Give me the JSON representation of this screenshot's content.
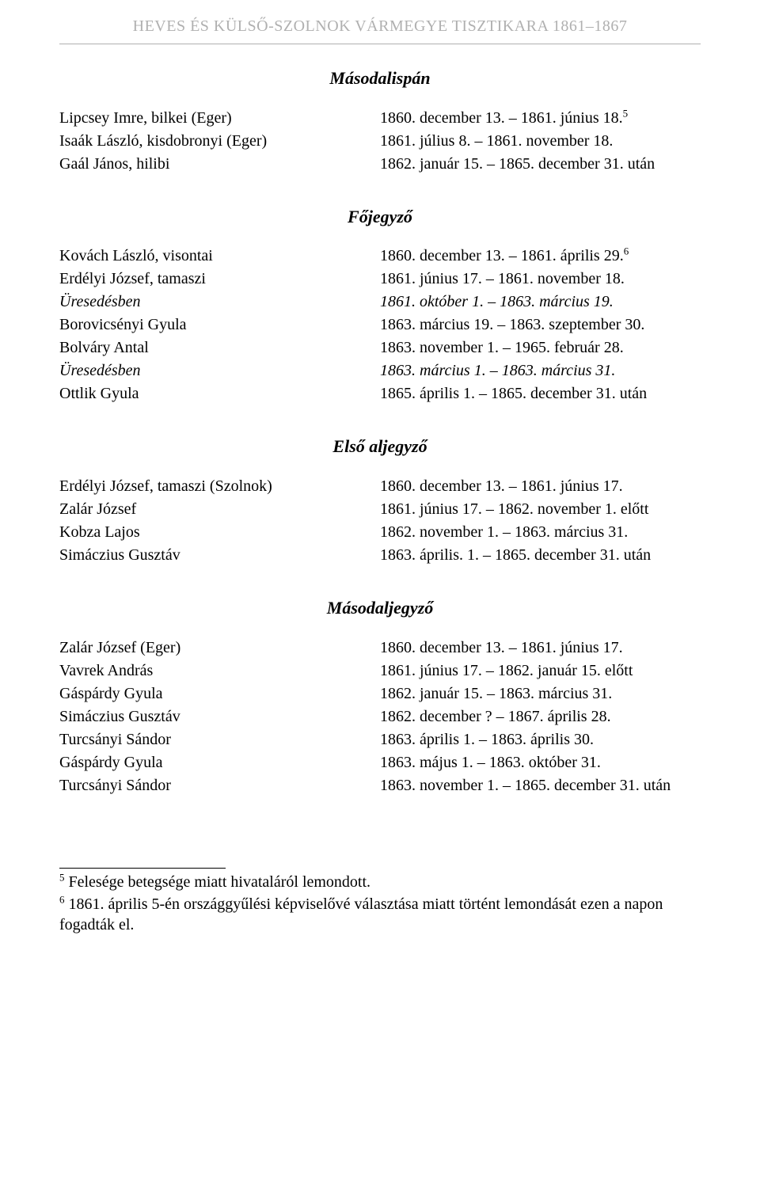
{
  "header": "HEVES ÉS KÜLSŐ-SZOLNOK VÁRMEGYE TISZTIKARA 1861–1867",
  "sections": {
    "masodalispan": {
      "title": "Másodalispán",
      "rows": [
        {
          "name": "Lipcsey Imre, bilkei (Eger)",
          "date": "1860. december 13. – 1861. június 18.",
          "sup": "5"
        },
        {
          "name": "Isaák László, kisdobronyi (Eger)",
          "date": "1861. július 8. – 1861. november 18."
        },
        {
          "name": "Gaál János, hilibi",
          "date": "1862. január 15. – 1865. december 31. után"
        }
      ]
    },
    "fojegyzo": {
      "title": "Főjegyző",
      "rows": [
        {
          "name": "Kovách László, visontai",
          "date": "1860. december 13. – 1861. április 29.",
          "sup": "6"
        },
        {
          "name": "Erdélyi József, tamaszi",
          "date": "1861. június 17. – 1861. november 18."
        },
        {
          "name": "Üresedésben",
          "nameItalic": true,
          "date": "1861. október 1. – 1863. március 19.",
          "dateItalic": true
        },
        {
          "name": "Borovicsényi Gyula",
          "date": "1863. március 19. – 1863. szeptember 30."
        },
        {
          "name": "Bolváry Antal",
          "date": "1863. november 1. – 1965. február 28."
        },
        {
          "name": "Üresedésben",
          "nameItalic": true,
          "date": "1863. március 1. – 1863. március 31.",
          "dateItalic": true
        },
        {
          "name": "Ottlik Gyula",
          "date": "1865. április 1. – 1865. december 31. után"
        }
      ]
    },
    "elsoaljegyzo": {
      "title": "Első aljegyző",
      "rows": [
        {
          "name": "Erdélyi József, tamaszi (Szolnok)",
          "date": "1860. december 13. – 1861. június 17."
        },
        {
          "name": "Zalár József",
          "date": "1861. június 17. – 1862. november 1. előtt"
        },
        {
          "name": "Kobza Lajos",
          "date": "1862. november 1. – 1863. március 31."
        },
        {
          "name": "Simáczius Gusztáv",
          "date": "1863. április. 1. – 1865. december 31. után"
        }
      ]
    },
    "masodaljegyzo": {
      "title": "Másodaljegyző",
      "rows": [
        {
          "name": "Zalár József (Eger)",
          "date": "1860. december 13. – 1861. június 17."
        },
        {
          "name": "Vavrek András",
          "date": "1861. június 17. – 1862. január 15. előtt"
        },
        {
          "name": "Gáspárdy Gyula",
          "date": "1862. január 15. – 1863. március 31."
        },
        {
          "name": "Simáczius Gusztáv",
          "date": "1862. december ? – 1867. április 28."
        },
        {
          "name": "Turcsányi Sándor",
          "date": "1863. április 1. – 1863. április 30."
        },
        {
          "name": "Gáspárdy Gyula",
          "date": "1863. május 1. – 1863. október 31."
        },
        {
          "name": "Turcsányi Sándor",
          "date": "1863. november 1. – 1865. december 31. után"
        }
      ]
    }
  },
  "footnotes": [
    {
      "num": "5",
      "text": " Felesége betegsége miatt hivataláról lemondott."
    },
    {
      "num": "6",
      "text": " 1861. április 5-én országgyűlési képviselővé választása miatt történt lemondását ezen a napon fogadták el."
    }
  ]
}
